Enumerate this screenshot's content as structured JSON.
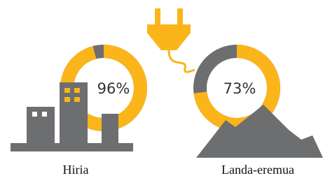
{
  "chart_data": [
    {
      "type": "donut",
      "title": "Hiria",
      "values": [
        96
      ],
      "value_labels": [
        "96%"
      ],
      "total": 100,
      "color": "#fbb41a",
      "rest_color": "#6d6e70"
    },
    {
      "type": "donut",
      "title": "Landa-eremua",
      "values": [
        73
      ],
      "value_labels": [
        "73%"
      ],
      "total": 100,
      "color": "#fbb41a",
      "rest_color": "#6d6e70"
    }
  ]
}
